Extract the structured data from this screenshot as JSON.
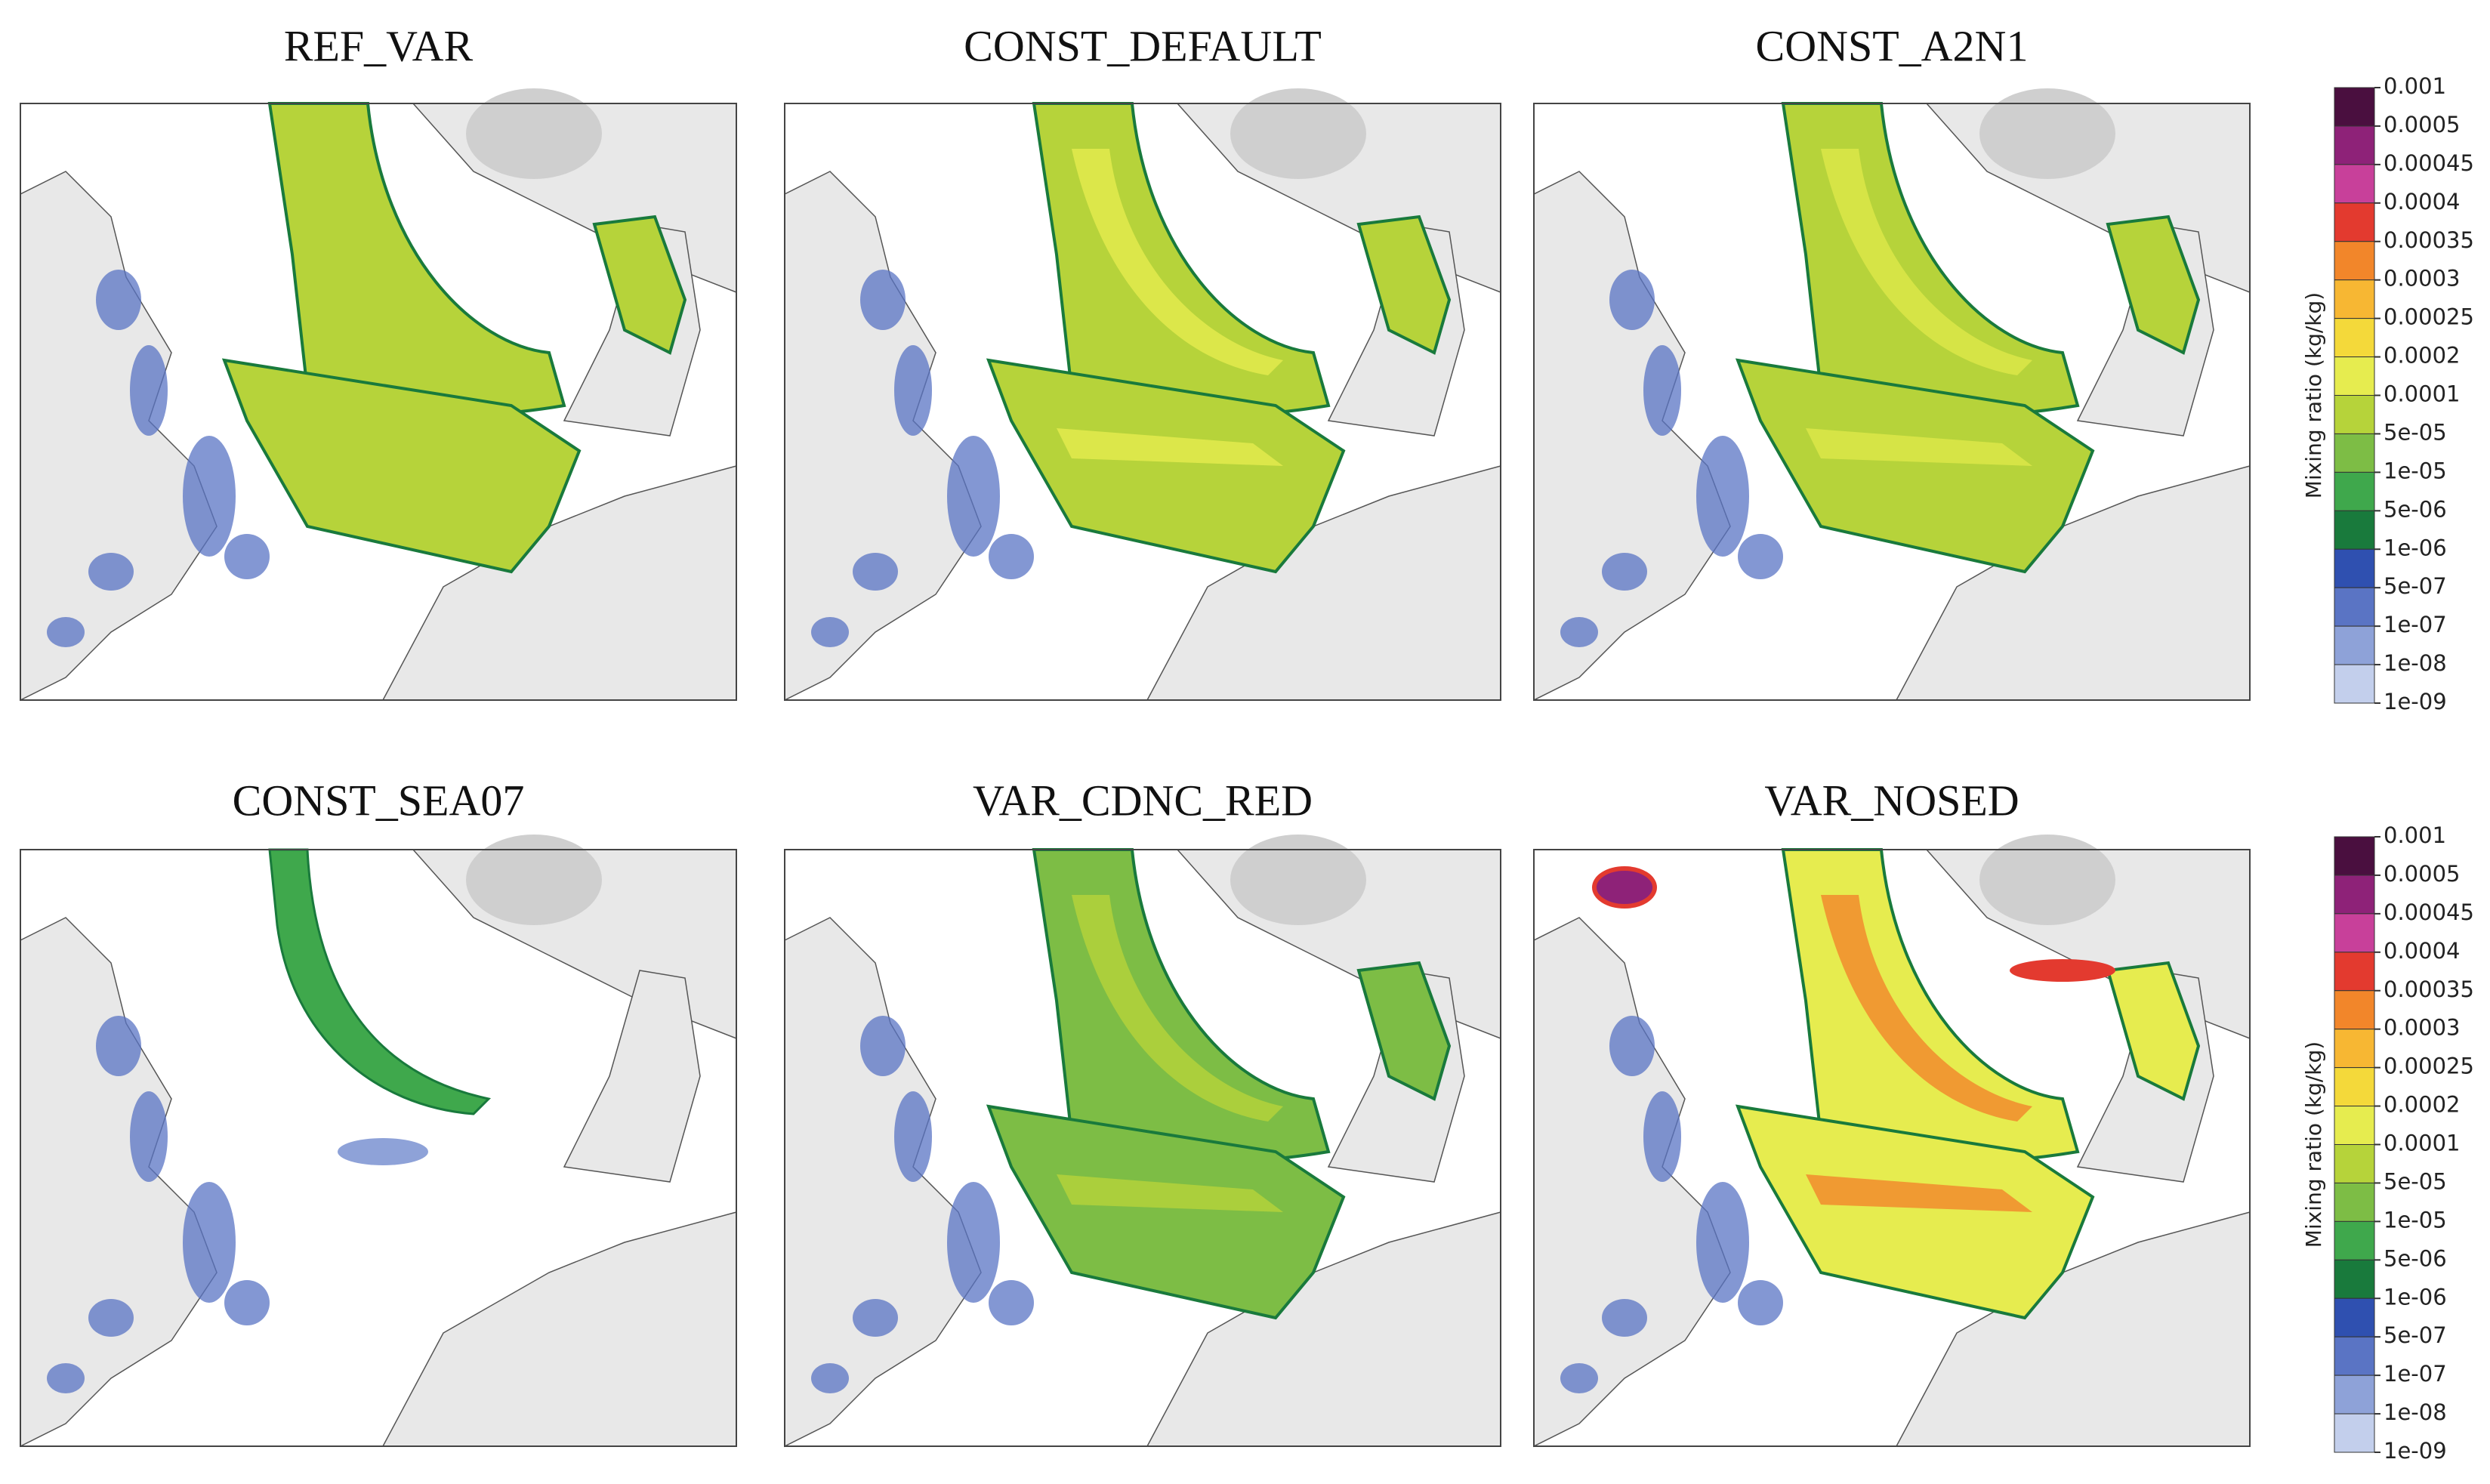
{
  "panels": [
    {
      "title": "REF_VAR"
    },
    {
      "title": "CONST_DEFAULT"
    },
    {
      "title": "CONST_A2N1"
    },
    {
      "title": "CONST_SEA07"
    },
    {
      "title": "VAR_CDNC_RED"
    },
    {
      "title": "VAR_NOSED"
    }
  ],
  "colorbars": [
    {
      "label": "Mixing ratio (kg/kg)",
      "ticks": [
        "0.001",
        "0.0005",
        "0.00045",
        "0.0004",
        "0.00035",
        "0.0003",
        "0.00025",
        "0.0002",
        "0.0001",
        "5e-05",
        "1e-05",
        "5e-06",
        "1e-06",
        "5e-07",
        "1e-07",
        "1e-08",
        "1e-09"
      ],
      "colors": [
        "#4a0f3f",
        "#8e2278",
        "#c8409a",
        "#e33a2f",
        "#f2862a",
        "#f7b733",
        "#f4d93a",
        "#e6ec4f",
        "#b6d33a",
        "#7dbd45",
        "#3fa84c",
        "#197a3c",
        "#2f50b0",
        "#5a74c4",
        "#8ea2d8",
        "#c3cfec"
      ]
    },
    {
      "label": "Mixing ratio (kg/kg)",
      "ticks": [
        "0.001",
        "0.0005",
        "0.00045",
        "0.0004",
        "0.00035",
        "0.0003",
        "0.00025",
        "0.0002",
        "0.0001",
        "5e-05",
        "1e-05",
        "5e-06",
        "1e-06",
        "5e-07",
        "1e-07",
        "1e-08",
        "1e-09"
      ],
      "colors": [
        "#4a0f3f",
        "#8e2278",
        "#c8409a",
        "#e33a2f",
        "#f2862a",
        "#f7b733",
        "#f4d93a",
        "#e6ec4f",
        "#b6d33a",
        "#7dbd45",
        "#3fa84c",
        "#197a3c",
        "#2f50b0",
        "#5a74c4",
        "#8ea2d8",
        "#c3cfec"
      ]
    }
  ]
}
